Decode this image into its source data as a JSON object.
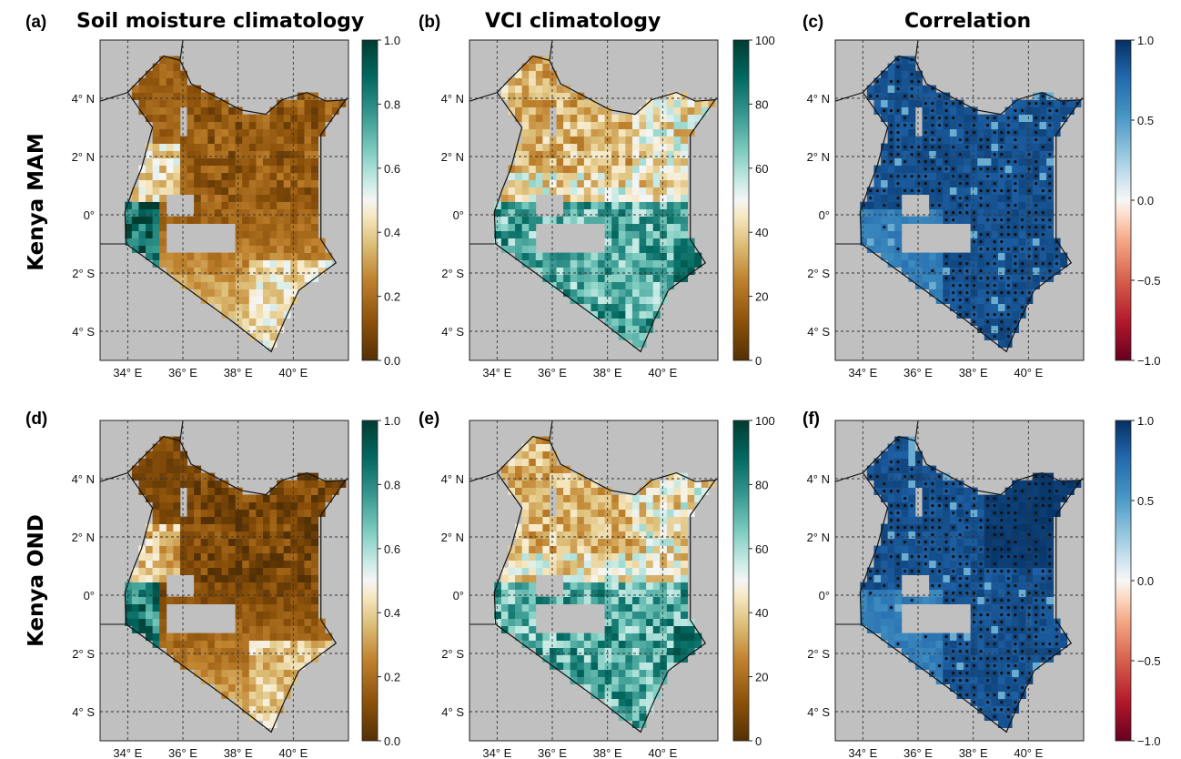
{
  "titles": {
    "a": "Soil moisture climatology",
    "b": "VCI climatology",
    "c": "Correlation"
  },
  "row_labels": [
    "Kenya MAM",
    "Kenya OND"
  ],
  "panels": [
    {
      "id": "a",
      "letter": "(a)",
      "kind": "sm"
    },
    {
      "id": "b",
      "letter": "(b)",
      "kind": "vci"
    },
    {
      "id": "c",
      "letter": "(c)",
      "kind": "corr"
    },
    {
      "id": "d",
      "letter": "(d)",
      "kind": "sm"
    },
    {
      "id": "e",
      "letter": "(e)",
      "kind": "vci"
    },
    {
      "id": "f",
      "letter": "(f)",
      "kind": "corr"
    }
  ],
  "lat_ticks": [
    "4° N",
    "2° N",
    "0°",
    "2° S",
    "4° S"
  ],
  "lon_ticks": [
    "34° E",
    "36° E",
    "38° E",
    "40° E"
  ],
  "colorbars": {
    "sm": {
      "ticks": [
        "1.0",
        "0.8",
        "0.6",
        "0.4",
        "0.2",
        "0.0"
      ],
      "min": 0,
      "max": 1,
      "colormap": "BrBG"
    },
    "vci": {
      "ticks": [
        "100",
        "80",
        "60",
        "40",
        "20",
        "0"
      ],
      "min": 0,
      "max": 100,
      "colormap": "BrBG"
    },
    "corr": {
      "ticks": [
        "1.0",
        "0.5",
        "0.0",
        "−0.5",
        "−1.0"
      ],
      "min": -1,
      "max": 1,
      "colormap": "RdBu"
    }
  },
  "map": {
    "lon_range": [
      33.0,
      42.0
    ],
    "lat_range": [
      -5.0,
      6.0
    ],
    "ocean_color": "#c0c0c0",
    "grid_style": "dashed"
  }
}
